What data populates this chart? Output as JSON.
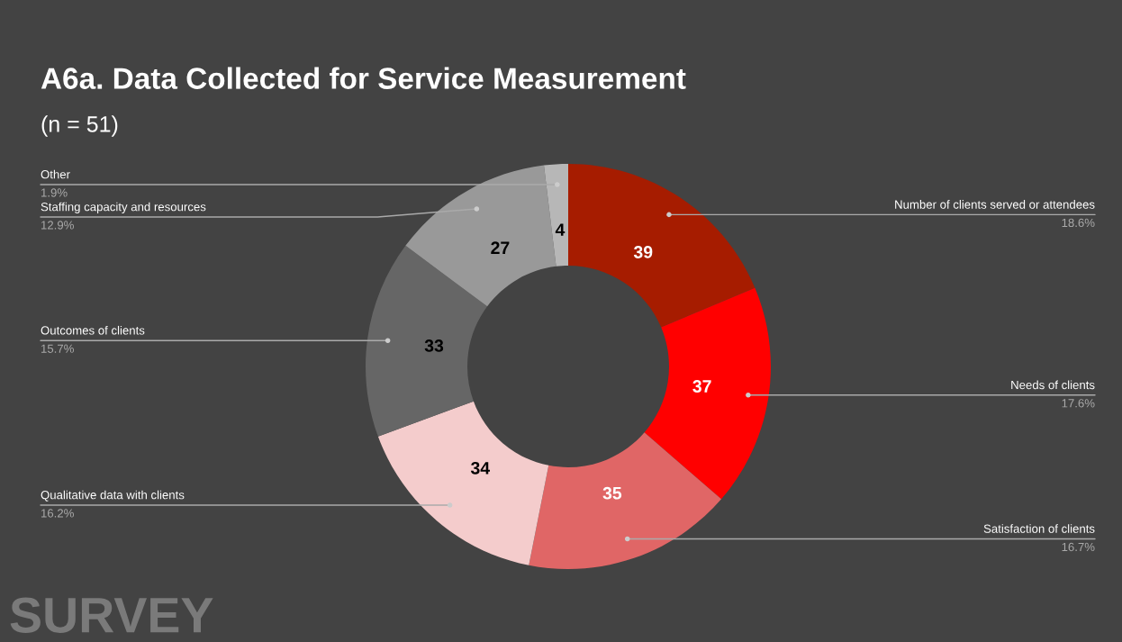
{
  "chart_data": {
    "type": "donut",
    "title": "A6a. Data Collected for Service Measurement",
    "subtitle": "(n = 51)",
    "categories": [
      "Number of clients served or attendees",
      "Needs of clients",
      "Satisfaction of clients",
      "Qualitative data with clients",
      "Outcomes of clients",
      "Staffing capacity and resources",
      "Other"
    ],
    "values": [
      39,
      37,
      35,
      34,
      33,
      27,
      4
    ],
    "colors": [
      "#a61c00",
      "#ff0000",
      "#e06666",
      "#f4cccc",
      "#666666",
      "#999999",
      "#b7b7b7"
    ],
    "data_labels": true,
    "annotations": [
      {
        "text": "18.6%",
        "x": "Number of clients served or attendees"
      },
      {
        "text": "17.6%",
        "x": "Needs of clients"
      },
      {
        "text": "16.7%",
        "x": "Satisfaction of clients"
      },
      {
        "text": "16.2%",
        "x": "Qualitative data with clients"
      },
      {
        "text": "15.7%",
        "x": "Outcomes of clients"
      },
      {
        "text": "12.9%",
        "x": "Staffing capacity and resources"
      },
      {
        "text": "1.9%",
        "x": "Other"
      },
      "SURVEY"
    ]
  }
}
